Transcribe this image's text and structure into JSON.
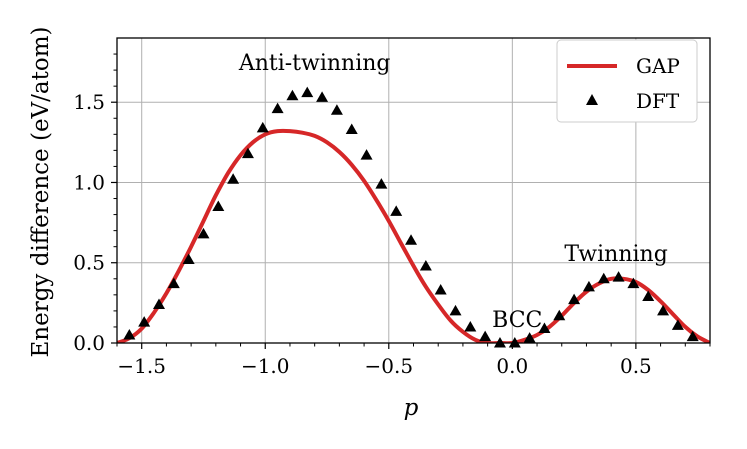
{
  "chart_data": {
    "type": "line",
    "xlabel": "p",
    "ylabel": "Energy difference (eV/atom)",
    "xlim": [
      -1.6,
      0.8
    ],
    "ylim": [
      0.0,
      1.9
    ],
    "xticks": [
      -1.5,
      -1.0,
      -0.5,
      0.0,
      0.5
    ],
    "xtick_labels": [
      "−1.5",
      "−1.0",
      "−0.5",
      "0.0",
      "0.5"
    ],
    "yticks": [
      0.0,
      0.5,
      1.0,
      1.5
    ],
    "ytick_labels": [
      "0.0",
      "0.5",
      "1.0",
      "1.5"
    ],
    "grid": true,
    "legend_position": "top-right",
    "annotations": [
      {
        "text": "Anti-twinning",
        "x": -0.8,
        "y": 1.7
      },
      {
        "text": "BCC",
        "x": 0.02,
        "y": 0.1
      },
      {
        "text": "Twinning",
        "x": 0.42,
        "y": 0.51
      }
    ],
    "series": [
      {
        "name": "GAP",
        "kind": "line",
        "color": "#d62728",
        "x": [
          -1.6,
          -1.55,
          -1.5,
          -1.45,
          -1.4,
          -1.35,
          -1.3,
          -1.25,
          -1.2,
          -1.15,
          -1.1,
          -1.05,
          -1.0,
          -0.95,
          -0.9,
          -0.85,
          -0.8,
          -0.75,
          -0.7,
          -0.65,
          -0.6,
          -0.55,
          -0.5,
          -0.45,
          -0.4,
          -0.35,
          -0.3,
          -0.25,
          -0.2,
          -0.15,
          -0.1,
          -0.05,
          0.0,
          0.05,
          0.1,
          0.15,
          0.2,
          0.25,
          0.3,
          0.35,
          0.4,
          0.45,
          0.5,
          0.55,
          0.6,
          0.65,
          0.7,
          0.75,
          0.8
        ],
        "y": [
          0.0,
          0.03,
          0.09,
          0.19,
          0.31,
          0.45,
          0.6,
          0.76,
          0.92,
          1.06,
          1.17,
          1.25,
          1.3,
          1.32,
          1.32,
          1.31,
          1.29,
          1.25,
          1.19,
          1.11,
          1.01,
          0.89,
          0.76,
          0.62,
          0.48,
          0.35,
          0.24,
          0.14,
          0.07,
          0.02,
          0.0,
          0.0,
          0.0,
          0.02,
          0.05,
          0.1,
          0.17,
          0.25,
          0.32,
          0.37,
          0.4,
          0.4,
          0.38,
          0.33,
          0.26,
          0.18,
          0.1,
          0.04,
          0.0
        ]
      },
      {
        "name": "DFT",
        "kind": "marker",
        "marker": "triangle",
        "color": "#000000",
        "x": [
          -1.55,
          -1.49,
          -1.43,
          -1.37,
          -1.31,
          -1.25,
          -1.19,
          -1.13,
          -1.07,
          -1.01,
          -0.95,
          -0.89,
          -0.83,
          -0.77,
          -0.71,
          -0.65,
          -0.59,
          -0.53,
          -0.47,
          -0.41,
          -0.35,
          -0.29,
          -0.23,
          -0.17,
          -0.11,
          -0.05,
          0.01,
          0.07,
          0.13,
          0.19,
          0.25,
          0.31,
          0.37,
          0.43,
          0.49,
          0.55,
          0.61,
          0.67,
          0.73
        ],
        "y": [
          0.05,
          0.13,
          0.24,
          0.37,
          0.52,
          0.68,
          0.85,
          1.02,
          1.18,
          1.34,
          1.46,
          1.54,
          1.56,
          1.53,
          1.45,
          1.33,
          1.17,
          0.99,
          0.82,
          0.64,
          0.48,
          0.33,
          0.2,
          0.1,
          0.04,
          0.0,
          0.0,
          0.03,
          0.09,
          0.17,
          0.27,
          0.35,
          0.4,
          0.41,
          0.37,
          0.29,
          0.2,
          0.11,
          0.04
        ]
      }
    ]
  }
}
